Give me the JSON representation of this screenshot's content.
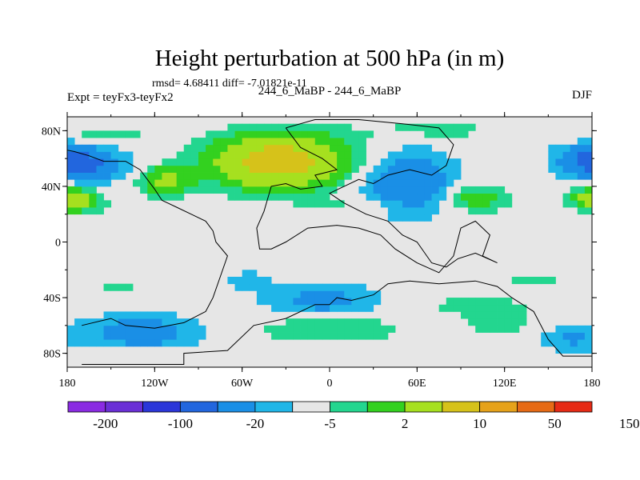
{
  "chart_data": {
    "type": "heatmap",
    "title": "Height perturbation at 500 hPa (in m)",
    "stats_line": "rmsd= 4.68411 diff= -7.01821e-11",
    "left_label": "Expt = teyFx3-teyFx2",
    "center_label": "244_6_MaBP - 244_6_MaBP",
    "right_label": "DJF",
    "x_range": [
      -180,
      180
    ],
    "y_range": [
      -90,
      90
    ],
    "x_ticks": [
      {
        "value": -180,
        "label": "180"
      },
      {
        "value": -120,
        "label": "120W"
      },
      {
        "value": -60,
        "label": "60W"
      },
      {
        "value": 0,
        "label": "0"
      },
      {
        "value": 60,
        "label": "60E"
      },
      {
        "value": 120,
        "label": "120E"
      },
      {
        "value": 180,
        "label": "180"
      }
    ],
    "y_ticks": [
      {
        "value": 80,
        "label": "80N"
      },
      {
        "value": 40,
        "label": "40N"
      },
      {
        "value": 0,
        "label": "0"
      },
      {
        "value": -40,
        "label": "40S"
      },
      {
        "value": -80,
        "label": "80S"
      }
    ],
    "colorbar": {
      "colors": [
        "#8a2be2",
        "#6a2fd6",
        "#2b36d9",
        "#2266de",
        "#1a8fe6",
        "#20b6e8",
        "#e6e6e6",
        "#23d68f",
        "#33d11f",
        "#a6e01f",
        "#d6c21a",
        "#e6a21a",
        "#e66a15",
        "#e62a15"
      ],
      "labels": [
        "-200",
        "-100",
        "-20",
        "-5",
        "2",
        "10",
        "50",
        "150"
      ]
    },
    "fields": [
      {
        "lon": 55,
        "lat": 42,
        "lon_r": 32,
        "lat_r": 22,
        "amp": -10
      },
      {
        "lon": -165,
        "lat": 56,
        "lon_r": 28,
        "lat_r": 13,
        "amp": -8
      },
      {
        "lon": 178,
        "lat": 60,
        "lon_r": 24,
        "lat_r": 14,
        "amp": -8
      },
      {
        "lon": -35,
        "lat": 58,
        "lon_r": 42,
        "lat_r": 18,
        "amp": 28
      },
      {
        "lon": -112,
        "lat": 44,
        "lon_r": 17,
        "lat_r": 10,
        "amp": 12
      },
      {
        "lon": -172,
        "lat": 30,
        "lon_r": 16,
        "lat_r": 8,
        "amp": 11
      },
      {
        "lon": 177,
        "lat": 32,
        "lon_r": 12,
        "lat_r": 8,
        "amp": 8
      },
      {
        "lon": 100,
        "lat": 32,
        "lon_r": 22,
        "lat_r": 10,
        "amp": 8
      },
      {
        "lon": -160,
        "lat": 76,
        "lon_r": 38,
        "lat_r": 8,
        "amp": 4
      },
      {
        "lon": 70,
        "lat": 80,
        "lon_r": 55,
        "lat_r": 7,
        "amp": 3
      },
      {
        "lon": 20,
        "lat": 25,
        "lon_r": 35,
        "lat_r": 6,
        "amp": 3
      },
      {
        "lon": -130,
        "lat": -65,
        "lon_r": 40,
        "lat_r": 13,
        "amp": -8
      },
      {
        "lon": -5,
        "lat": -42,
        "lon_r": 38,
        "lat_r": 12,
        "amp": -7
      },
      {
        "lon": -55,
        "lat": -28,
        "lon_r": 16,
        "lat_r": 7,
        "amp": -4
      },
      {
        "lon": 165,
        "lat": -70,
        "lon_r": 20,
        "lat_r": 10,
        "amp": -5
      },
      {
        "lon": 0,
        "lat": -62,
        "lon_r": 50,
        "lat_r": 10,
        "amp": 5
      },
      {
        "lon": -140,
        "lat": -82,
        "lon_r": 35,
        "lat_r": 6,
        "amp": 3
      },
      {
        "lon": -145,
        "lat": -34,
        "lon_r": 25,
        "lat_r": 7,
        "amp": 2.6
      },
      {
        "lon": 115,
        "lat": -55,
        "lon_r": 25,
        "lat_r": 12,
        "amp": 4
      },
      {
        "lon": 140,
        "lat": -28,
        "lon_r": 30,
        "lat_r": 7,
        "amp": 2.5
      },
      {
        "lon": 85,
        "lat": -45,
        "lon_r": 40,
        "lat_r": 6,
        "amp": 2.3
      }
    ],
    "coast": [
      [
        [
          -170,
          -88
        ],
        [
          -100,
          -88
        ],
        [
          -100,
          -80
        ],
        [
          -70,
          -78
        ],
        [
          -52,
          -60
        ],
        [
          -30,
          -55
        ],
        [
          -10,
          -45
        ],
        [
          0,
          -45
        ],
        [
          5,
          -40
        ],
        [
          15,
          -42
        ],
        [
          30,
          -38
        ],
        [
          40,
          -30
        ],
        [
          55,
          -28
        ],
        [
          75,
          -30
        ],
        [
          100,
          -28
        ],
        [
          115,
          -32
        ],
        [
          125,
          -40
        ],
        [
          140,
          -50
        ],
        [
          150,
          -70
        ],
        [
          160,
          -82
        ],
        [
          180,
          -82
        ]
      ],
      [
        [
          -30,
          82
        ],
        [
          -20,
          68
        ],
        [
          -5,
          60
        ],
        [
          5,
          52
        ],
        [
          -10,
          48
        ],
        [
          -5,
          40
        ],
        [
          -20,
          38
        ],
        [
          -30,
          42
        ],
        [
          -40,
          40
        ],
        [
          -45,
          22
        ],
        [
          -50,
          10
        ],
        [
          -48,
          -5
        ],
        [
          -40,
          -5
        ],
        [
          -30,
          0
        ],
        [
          -15,
          10
        ],
        [
          5,
          12
        ],
        [
          20,
          10
        ],
        [
          35,
          5
        ],
        [
          45,
          -5
        ],
        [
          60,
          -15
        ],
        [
          75,
          -22
        ],
        [
          85,
          -10
        ],
        [
          90,
          10
        ],
        [
          100,
          15
        ],
        [
          110,
          5
        ],
        [
          105,
          -10
        ],
        [
          115,
          -15
        ],
        [
          100,
          -8
        ],
        [
          88,
          -12
        ],
        [
          80,
          -18
        ],
        [
          70,
          -15
        ],
        [
          60,
          0
        ],
        [
          50,
          5
        ],
        [
          40,
          15
        ],
        [
          25,
          20
        ],
        [
          10,
          28
        ],
        [
          0,
          35
        ],
        [
          10,
          40
        ],
        [
          20,
          45
        ],
        [
          30,
          42
        ],
        [
          40,
          48
        ],
        [
          55,
          52
        ],
        [
          70,
          48
        ],
        [
          80,
          55
        ],
        [
          85,
          70
        ],
        [
          75,
          82
        ],
        [
          50,
          85
        ],
        [
          20,
          88
        ],
        [
          -10,
          88
        ],
        [
          -30,
          82
        ]
      ],
      [
        [
          -170,
          -60
        ],
        [
          -150,
          -55
        ],
        [
          -140,
          -60
        ],
        [
          -120,
          -62
        ],
        [
          -100,
          -58
        ],
        [
          -85,
          -50
        ],
        [
          -80,
          -40
        ],
        [
          -75,
          -25
        ],
        [
          -70,
          -10
        ],
        [
          -78,
          0
        ],
        [
          -80,
          8
        ],
        [
          -85,
          15
        ],
        [
          -95,
          20
        ],
        [
          -105,
          25
        ],
        [
          -115,
          30
        ],
        [
          -120,
          38
        ],
        [
          -125,
          45
        ],
        [
          -130,
          52
        ],
        [
          -140,
          58
        ],
        [
          -155,
          58
        ],
        [
          -165,
          62
        ],
        [
          -175,
          65
        ],
        [
          -180,
          66
        ]
      ]
    ]
  }
}
